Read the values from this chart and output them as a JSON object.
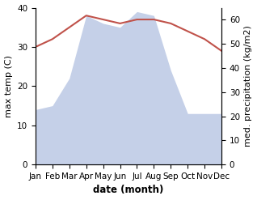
{
  "months": [
    "Jan",
    "Feb",
    "Mar",
    "Apr",
    "May",
    "Jun",
    "Jul",
    "Aug",
    "Sep",
    "Oct",
    "Nov",
    "Dec"
  ],
  "temp": [
    30,
    32,
    35,
    38,
    37,
    36,
    37,
    37,
    36,
    34,
    32,
    29
  ],
  "precip": [
    14,
    15,
    22,
    38,
    36,
    35,
    39,
    38,
    24,
    13,
    13,
    13
  ],
  "temp_color": "#c0524a",
  "precip_fill_color": "#c5d0e8",
  "precip_line_color": "#a8b8d8",
  "ylabel_left": "max temp (C)",
  "ylabel_right": "med. precipitation (kg/m2)",
  "xlabel": "date (month)",
  "ylim_left": [
    0,
    40
  ],
  "ylim_right": [
    0,
    65
  ],
  "yticks_left": [
    0,
    10,
    20,
    30,
    40
  ],
  "yticks_right": [
    0,
    10,
    20,
    30,
    40,
    50,
    60
  ],
  "background_color": "#ffffff",
  "axis_fontsize": 8,
  "tick_fontsize": 7.5,
  "label_fontsize": 8.5
}
